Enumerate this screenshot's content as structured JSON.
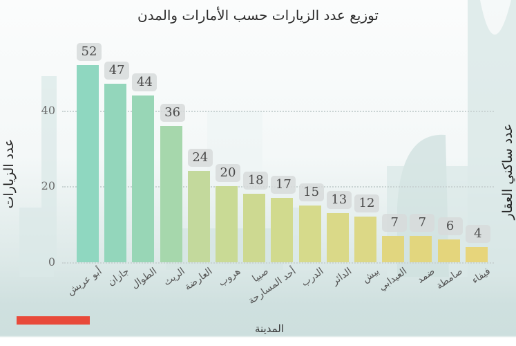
{
  "chart_data": {
    "type": "bar",
    "title": "توزيع عدد الزيارات حسب الأمارات والمدن",
    "xlabel": "المدينة",
    "ylabel": "عدد الزيارات",
    "ylabel_right": "عدد ساكني العقار",
    "categories": [
      "أبو عريش",
      "جازان",
      "الطوال",
      "الريث",
      "العارضة",
      "هروب",
      "صبيا",
      "أحد المسارحة",
      "الدرب",
      "الدائر",
      "بيش",
      "العيدابي",
      "ضمد",
      "صامطة",
      "فيفاء"
    ],
    "values": [
      52,
      47,
      44,
      36,
      24,
      20,
      18,
      17,
      15,
      13,
      12,
      7,
      7,
      6,
      4
    ],
    "yticks": [
      0,
      20,
      40
    ],
    "ylim": [
      0,
      56
    ],
    "grid": true,
    "data_labels": true,
    "legend": null,
    "bar_colors": [
      "#8fd7c0",
      "#93d6bb",
      "#98d6b6",
      "#a6d7ac",
      "#c3d99c",
      "#c9da95",
      "#cdd991",
      "#d1da8e",
      "#d6da8b",
      "#dad988",
      "#dcd886",
      "#e1d67f",
      "#e2d67e",
      "#e4d57c",
      "#e7d57b"
    ]
  },
  "decor": {
    "accent_bar_color": "#e84a3a"
  }
}
